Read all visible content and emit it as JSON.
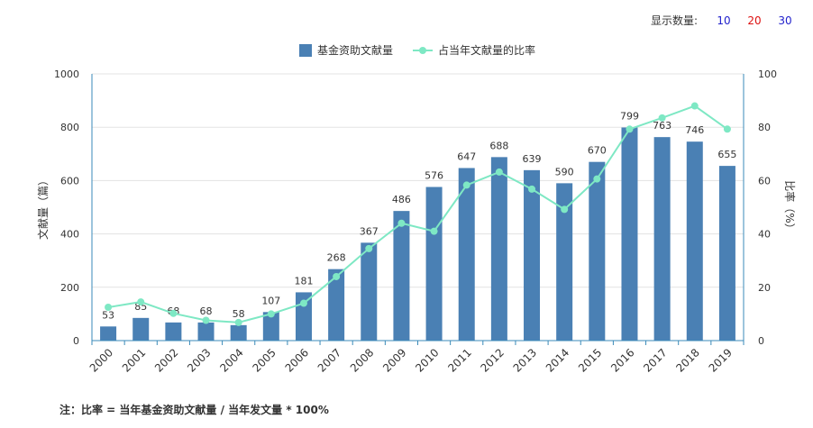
{
  "controls": {
    "display_label": "显示数量:",
    "options": [
      {
        "label": "10",
        "color": "#2222cc"
      },
      {
        "label": "20",
        "color": "#dd1111"
      },
      {
        "label": "30",
        "color": "#2222cc"
      }
    ]
  },
  "note": "注：比率 = 当年基金资助文献量 / 当年发文量 * 100%",
  "colors": {
    "bar": "#4a80b4",
    "line": "#7ee8c4",
    "axis": "#3a8ab8",
    "grid": "#e3e3e3"
  },
  "chart_data": {
    "type": "bar",
    "categories": [
      "2000",
      "2001",
      "2002",
      "2003",
      "2004",
      "2005",
      "2006",
      "2007",
      "2008",
      "2009",
      "2010",
      "2011",
      "2012",
      "2013",
      "2014",
      "2015",
      "2016",
      "2017",
      "2018",
      "2019"
    ],
    "series": [
      {
        "name": "基金资助文献量",
        "type": "bar",
        "axis": "left",
        "values": [
          53,
          85,
          68,
          68,
          58,
          107,
          181,
          268,
          367,
          486,
          576,
          647,
          688,
          639,
          590,
          670,
          799,
          763,
          746,
          655
        ]
      },
      {
        "name": "占当年文献量的比率",
        "type": "line",
        "axis": "right",
        "values": [
          12.5,
          14.5,
          10.2,
          7.6,
          6.8,
          10.0,
          14.0,
          24.0,
          34.5,
          44.0,
          41.0,
          58.3,
          63.2,
          56.8,
          49.2,
          60.6,
          79.3,
          83.5,
          88.0,
          79.3
        ]
      }
    ],
    "ylabel": "文献量（篇）",
    "y2label": "比率（%）",
    "ylim": [
      0,
      1000
    ],
    "y2lim": [
      0,
      100
    ],
    "yticks": [
      "0",
      "200",
      "400",
      "600",
      "800",
      "1000"
    ],
    "y2ticks": [
      "0",
      "20",
      "40",
      "60",
      "80",
      "100"
    ],
    "grid": true,
    "legend": "top-center"
  }
}
